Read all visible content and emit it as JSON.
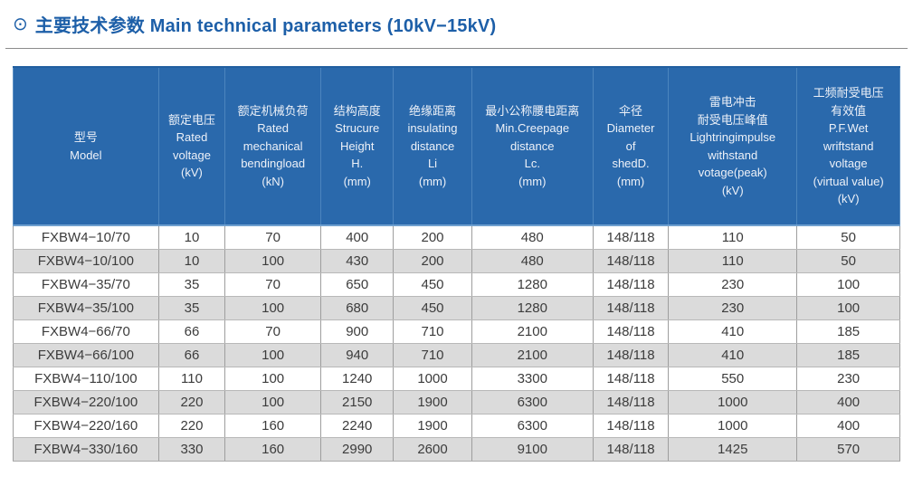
{
  "header": {
    "icon": "⊙",
    "title": "主要技术参数 Main technical parameters (10kV−15kV)"
  },
  "colors": {
    "title_blue": "#1d5fa8",
    "table_header_bg": "#2a69ac",
    "table_header_divider": "#4c85be",
    "table_header_text": "#edf1f8",
    "row_white": "#ffffff",
    "row_gray": "#dbdbdb",
    "cell_text": "#3c3c3c"
  },
  "table": {
    "columns": [
      {
        "id": "model",
        "label": "型号\nModel"
      },
      {
        "id": "rated-voltage",
        "label": "额定电压\nRated\nvoltage\n(kV)"
      },
      {
        "id": "rated-mechanical-bending-load",
        "label": "额定机械负荷\nRated\nmechanical\nbendingload\n(kN)"
      },
      {
        "id": "structure-height",
        "label": "结构高度\nStrucure\nHeight\nH.\n(mm)"
      },
      {
        "id": "insulating-distance",
        "label": "绝缘距离\ninsulating\ndistance\nLi\n(mm)"
      },
      {
        "id": "min-creepage-distance",
        "label": "最小公称腰电距离\nMin.Creepage\ndistance\nLc.\n(mm)"
      },
      {
        "id": "shed-diameter",
        "label": "伞径\nDiameter\nof\nshedD.\n(mm)"
      },
      {
        "id": "lightning-impulse-withstand",
        "label": "雷电冲击\n耐受电压峰值\nLightringimpulse\nwithstand\nvotage(peak)\n(kV)"
      },
      {
        "id": "pf-wet-withstand",
        "label": "工频耐受电压\n有效值\nP.F.Wet\nwriftstand\nvoltage\n(virtual value)\n(kV)"
      }
    ],
    "rows": [
      [
        "FXBW4−10/70",
        "10",
        "70",
        "400",
        "200",
        "480",
        "148/118",
        "110",
        "50"
      ],
      [
        "FXBW4−10/100",
        "10",
        "100",
        "430",
        "200",
        "480",
        "148/118",
        "110",
        "50"
      ],
      [
        "FXBW4−35/70",
        "35",
        "70",
        "650",
        "450",
        "1280",
        "148/118",
        "230",
        "100"
      ],
      [
        "FXBW4−35/100",
        "35",
        "100",
        "680",
        "450",
        "1280",
        "148/118",
        "230",
        "100"
      ],
      [
        "FXBW4−66/70",
        "66",
        "70",
        "900",
        "710",
        "2100",
        "148/118",
        "410",
        "185"
      ],
      [
        "FXBW4−66/100",
        "66",
        "100",
        "940",
        "710",
        "2100",
        "148/118",
        "410",
        "185"
      ],
      [
        "FXBW4−110/100",
        "110",
        "100",
        "1240",
        "1000",
        "3300",
        "148/118",
        "550",
        "230"
      ],
      [
        "FXBW4−220/100",
        "220",
        "100",
        "2150",
        "1900",
        "6300",
        "148/118",
        "1000",
        "400"
      ],
      [
        "FXBW4−220/160",
        "220",
        "160",
        "2240",
        "1900",
        "6300",
        "148/118",
        "1000",
        "400"
      ],
      [
        "FXBW4−330/160",
        "330",
        "160",
        "2990",
        "2600",
        "9100",
        "148/118",
        "1425",
        "570"
      ]
    ]
  }
}
